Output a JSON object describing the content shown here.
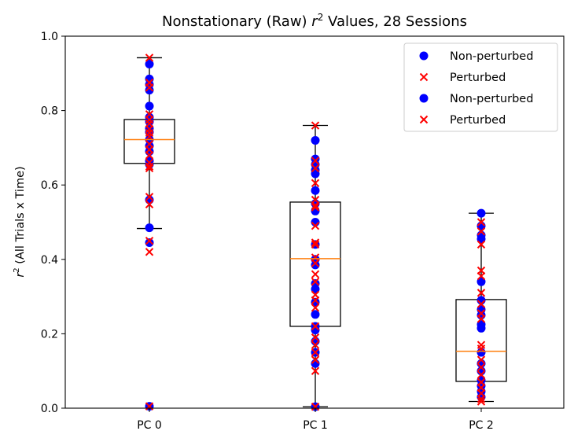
{
  "chart_data": {
    "type": "box",
    "title": "Nonstationary (Raw) r² Values, 28 Sessions",
    "title_parts": {
      "pre": "Nonstationary (Raw) ",
      "var": "r",
      "sup": "2",
      "post": " Values, 28 Sessions"
    },
    "ylabel_parts": {
      "var": "r",
      "sup": "2",
      "post": " (All Trials x Time)"
    },
    "xlabel": "",
    "ylim": [
      0,
      1.0
    ],
    "yticks": [
      0.0,
      0.2,
      0.4,
      0.6,
      0.8,
      1.0
    ],
    "ytick_labels": [
      "0.0",
      "0.2",
      "0.4",
      "0.6",
      "0.8",
      "1.0"
    ],
    "categories": [
      "PC 0",
      "PC 1",
      "PC 2"
    ],
    "boxes": [
      {
        "category": "PC 0",
        "q1": 0.658,
        "median": 0.722,
        "q3": 0.776,
        "whisker_low": 0.483,
        "whisker_high": 0.942
      },
      {
        "category": "PC 1",
        "q1": 0.22,
        "median": 0.402,
        "q3": 0.554,
        "whisker_low": 0.004,
        "whisker_high": 0.76
      },
      {
        "category": "PC 2",
        "q1": 0.072,
        "median": 0.153,
        "q3": 0.292,
        "whisker_low": 0.018,
        "whisker_high": 0.524
      }
    ],
    "series": [
      {
        "name": "Non-perturbed",
        "marker": "circle",
        "color": "#0000ff",
        "values": [
          [
            0.925,
            0.885,
            0.87,
            0.855,
            0.812,
            0.782,
            0.77,
            0.752,
            0.742,
            0.722,
            0.705,
            0.69,
            0.665,
            0.655,
            0.56,
            0.485,
            0.445,
            0.005
          ],
          [
            0.72,
            0.67,
            0.655,
            0.64,
            0.63,
            0.585,
            0.55,
            0.53,
            0.5,
            0.44,
            0.4,
            0.385,
            0.335,
            0.32,
            0.285,
            0.252,
            0.22,
            0.21,
            0.18,
            0.15,
            0.12,
            0.004
          ],
          [
            0.524,
            0.49,
            0.465,
            0.455,
            0.34,
            0.29,
            0.265,
            0.25,
            0.225,
            0.215,
            0.15,
            0.12,
            0.1,
            0.075,
            0.06,
            0.045,
            0.03
          ]
        ]
      },
      {
        "name": "Perturbed",
        "marker": "x",
        "color": "#ff0000",
        "values": [
          [
            0.942,
            0.875,
            0.862,
            0.79,
            0.775,
            0.765,
            0.75,
            0.74,
            0.73,
            0.71,
            0.695,
            0.68,
            0.66,
            0.65,
            0.645,
            0.568,
            0.548,
            0.45,
            0.42,
            0.005
          ],
          [
            0.76,
            0.665,
            0.645,
            0.605,
            0.56,
            0.545,
            0.54,
            0.49,
            0.445,
            0.44,
            0.405,
            0.39,
            0.36,
            0.34,
            0.305,
            0.29,
            0.27,
            0.22,
            0.19,
            0.17,
            0.15,
            0.13,
            0.1,
            0.004
          ],
          [
            0.5,
            0.475,
            0.44,
            0.37,
            0.355,
            0.31,
            0.28,
            0.255,
            0.24,
            0.17,
            0.16,
            0.13,
            0.11,
            0.09,
            0.07,
            0.055,
            0.04,
            0.025,
            0.018
          ]
        ]
      }
    ],
    "legend": {
      "placement": "top-right",
      "entries": [
        {
          "label": "Non-perturbed",
          "marker": "circle",
          "color": "#0000ff"
        },
        {
          "label": "Perturbed",
          "marker": "x",
          "color": "#ff0000"
        },
        {
          "label": "Non-perturbed",
          "marker": "circle",
          "color": "#0000ff"
        },
        {
          "label": "Perturbed",
          "marker": "x",
          "color": "#ff0000"
        }
      ]
    },
    "colors": {
      "median": "#ff7f0e",
      "box": "#000000"
    }
  }
}
